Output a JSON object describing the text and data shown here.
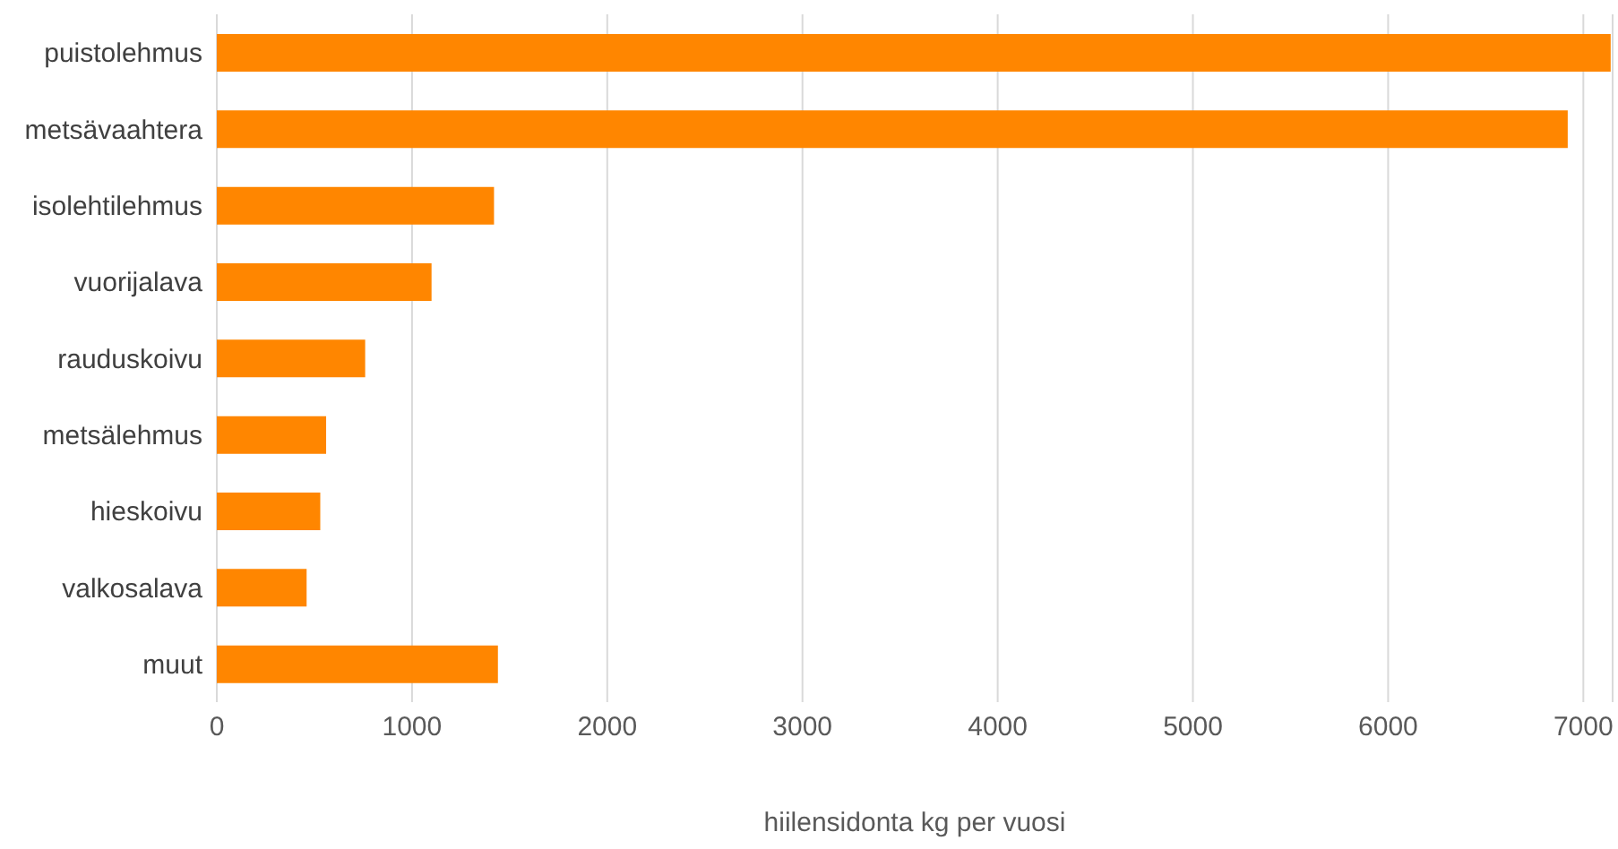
{
  "chart_data": {
    "type": "bar",
    "orientation": "horizontal",
    "xlabel": "hiilensidonta kg per vuosi",
    "categories": [
      "puistolehmus",
      "metsävaahtera",
      "isolehtilehmus",
      "vuorijalava",
      "rauduskoivu",
      "metsälehmus",
      "hieskoivu",
      "valkosalava",
      "muut"
    ],
    "values": [
      7140,
      6920,
      1420,
      1100,
      760,
      560,
      530,
      460,
      1440
    ],
    "color": "#ff8600",
    "xlim": [
      0,
      7150
    ],
    "xticks": [
      0,
      1000,
      2000,
      3000,
      4000,
      5000,
      6000,
      7000
    ],
    "grid": "x",
    "legend": false
  }
}
